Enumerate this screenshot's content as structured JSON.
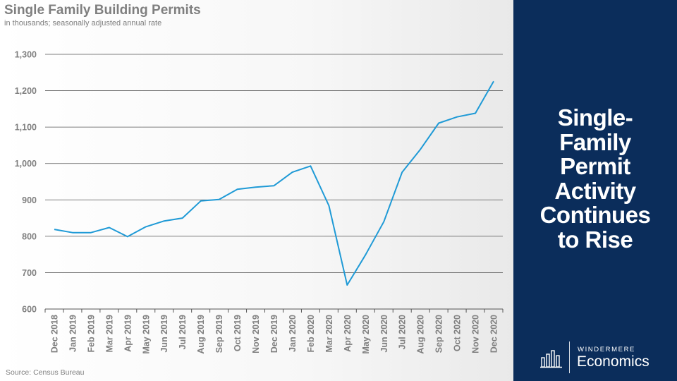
{
  "chart_data": {
    "type": "line",
    "title": "Single Family Building Permits",
    "subtitle": "in thousands; seasonally adjusted annual rate",
    "source": "Source: Census Bureau",
    "xlabel": "",
    "ylabel": "",
    "ylim": [
      600,
      1300
    ],
    "yticks": [
      "600",
      "700",
      "800",
      "900",
      "1,000",
      "1,100",
      "1,200",
      "1,300"
    ],
    "ytick_values": [
      600,
      700,
      800,
      900,
      1000,
      1100,
      1200,
      1300
    ],
    "grid": true,
    "legend": "none",
    "line_color": "#1f9ad6",
    "categories": [
      "Dec 2018",
      "Jan 2019",
      "Feb 2019",
      "Mar 2019",
      "Apr 2019",
      "May 2019",
      "Jun 2019",
      "Jul 2019",
      "Aug 2019",
      "Sep 2019",
      "Oct 2019",
      "Nov 2019",
      "Dec 2019",
      "Jan 2020",
      "Feb 2020",
      "Mar 2020",
      "Apr 2020",
      "May 2020",
      "Jun 2020",
      "Jul 2020",
      "Aug 2020",
      "Sep 2020",
      "Oct 2020",
      "Nov 2020",
      "Dec 2020"
    ],
    "values": [
      819,
      810,
      810,
      824,
      799,
      826,
      842,
      850,
      897,
      901,
      929,
      935,
      939,
      976,
      993,
      884,
      666,
      749,
      840,
      976,
      1039,
      1111,
      1128,
      1138,
      1226
    ]
  },
  "sidebar": {
    "headline": "Single-\nFamily\nPermit\nActivity\nContinues\nto Rise",
    "background": "#0b2d5b"
  },
  "logo": {
    "top_text": "WINDERMERE",
    "bottom_text": "Economics",
    "icon": "bar-chart-logo-icon"
  }
}
